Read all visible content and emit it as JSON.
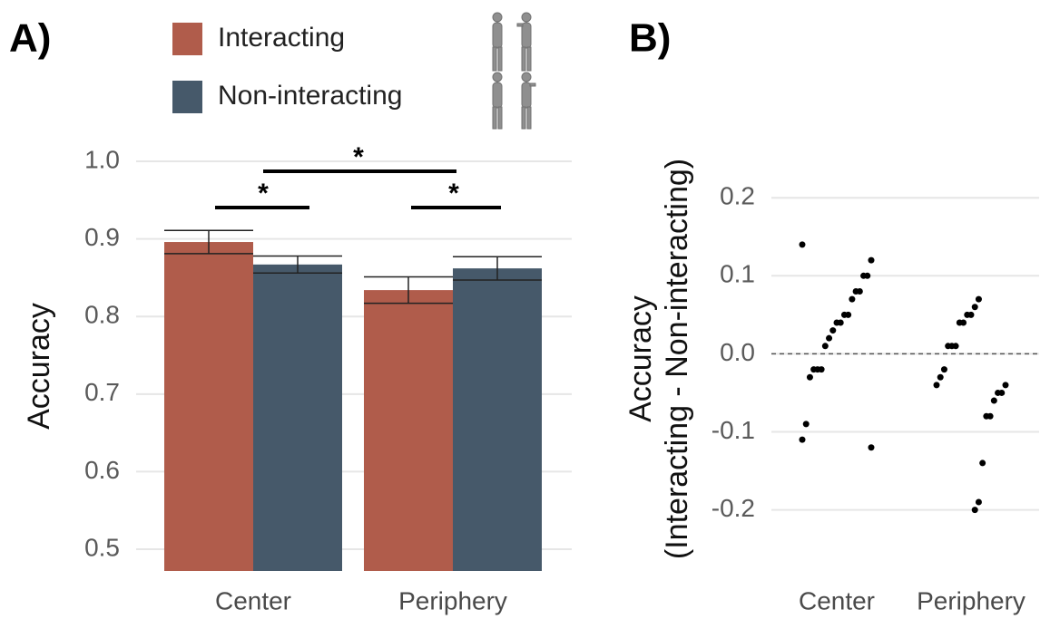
{
  "chart_data": [
    {
      "type": "bar",
      "panel_label": "A)",
      "y_label": "Accuracy",
      "categories": [
        "Center",
        "Periphery"
      ],
      "series": [
        {
          "name": "Interacting",
          "color": "#b05c4b",
          "values": [
            0.896,
            0.834
          ],
          "errors": [
            0.015,
            0.017
          ]
        },
        {
          "name": "Non-interacting",
          "color": "#46596a",
          "values": [
            0.867,
            0.862
          ],
          "errors": [
            0.011,
            0.015
          ]
        }
      ],
      "ylim": [
        0.472,
        1.0
      ],
      "yticks": [
        0.5,
        0.6,
        0.7,
        0.8,
        0.9,
        {
          "value": 1,
          "label": "1.0"
        }
      ],
      "grid": true,
      "annotations": [
        "*",
        "*",
        "*"
      ]
    },
    {
      "type": "strip",
      "panel_label": "B)",
      "y_label": [
        "Accuracy",
        "(Interacting - Non-interacting)"
      ],
      "categories": [
        "Center",
        "Periphery"
      ],
      "point_color": "#000000",
      "groups": [
        {
          "values": [
            0.14,
            0.12,
            0.1,
            0.1,
            0.08,
            0.08,
            0.07,
            0.05,
            0.05,
            0.04,
            0.04,
            0.03,
            0.02,
            0.01,
            -0.02,
            -0.02,
            -0.02,
            -0.03,
            -0.09,
            -0.11,
            -0.12
          ]
        },
        {
          "values": [
            0.07,
            0.06,
            0.05,
            0.05,
            0.04,
            0.04,
            0.01,
            0.01,
            0.01,
            -0.02,
            -0.03,
            -0.04,
            -0.04,
            -0.05,
            -0.05,
            -0.06,
            -0.08,
            -0.08,
            -0.14,
            -0.19,
            -0.2
          ]
        }
      ],
      "ylim": [
        -0.233,
        0.22
      ],
      "yticks": [
        -0.2,
        -0.1,
        {
          "value": 0,
          "label": "0.0"
        },
        0.1,
        0.2
      ],
      "grid": true,
      "reference_line": 0
    }
  ]
}
